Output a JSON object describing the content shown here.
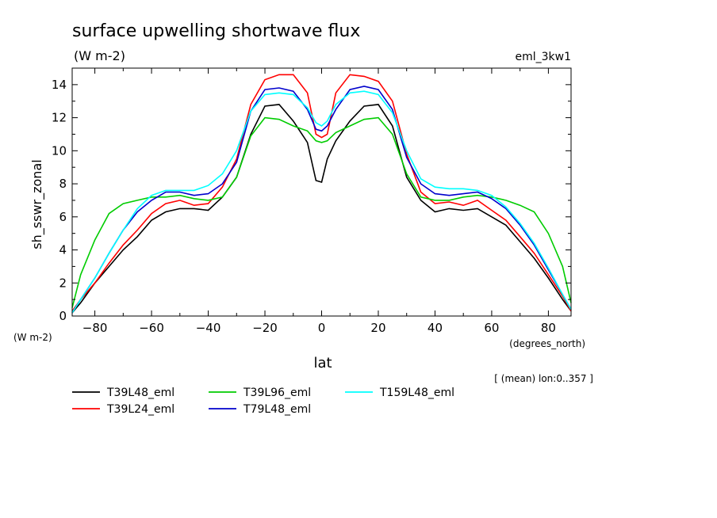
{
  "chart_data": {
    "type": "line",
    "title": "surface upwelling shortwave flux",
    "units_label": "(W m-2)",
    "dataset_label": "eml_3kw1",
    "xlabel": "lat",
    "xunits": "(degrees_north)",
    "ylabel": "sh_sswr_zonal",
    "yunits": "(W m-2)",
    "averaging_note": "[ (mean) lon:0..357 ]",
    "xlim": [
      -88,
      88
    ],
    "ylim": [
      0,
      15
    ],
    "xticks": [
      -80,
      -60,
      -40,
      -20,
      0,
      20,
      40,
      60,
      80
    ],
    "yticks": [
      0,
      2,
      4,
      6,
      8,
      10,
      12,
      14
    ],
    "legend_placement": "bottom",
    "series": [
      {
        "name": "T39L48_eml",
        "color": "#000000",
        "points": [
          [
            -88,
            0.2
          ],
          [
            -85,
            0.8
          ],
          [
            -80,
            2.0
          ],
          [
            -75,
            3.0
          ],
          [
            -70,
            4.0
          ],
          [
            -65,
            4.8
          ],
          [
            -60,
            5.8
          ],
          [
            -55,
            6.3
          ],
          [
            -50,
            6.5
          ],
          [
            -45,
            6.5
          ],
          [
            -40,
            6.4
          ],
          [
            -35,
            7.2
          ],
          [
            -30,
            8.4
          ],
          [
            -25,
            11.0
          ],
          [
            -20,
            12.7
          ],
          [
            -15,
            12.8
          ],
          [
            -10,
            11.8
          ],
          [
            -5,
            10.5
          ],
          [
            -2,
            8.2
          ],
          [
            0,
            8.1
          ],
          [
            2,
            9.5
          ],
          [
            5,
            10.6
          ],
          [
            10,
            11.8
          ],
          [
            15,
            12.7
          ],
          [
            20,
            12.8
          ],
          [
            25,
            11.5
          ],
          [
            30,
            8.4
          ],
          [
            35,
            7.0
          ],
          [
            40,
            6.3
          ],
          [
            45,
            6.5
          ],
          [
            50,
            6.4
          ],
          [
            55,
            6.5
          ],
          [
            60,
            6.0
          ],
          [
            65,
            5.5
          ],
          [
            70,
            4.5
          ],
          [
            75,
            3.5
          ],
          [
            80,
            2.3
          ],
          [
            85,
            1.0
          ],
          [
            88,
            0.3
          ]
        ]
      },
      {
        "name": "T39L24_eml",
        "color": "#ff0000",
        "points": [
          [
            -88,
            0.3
          ],
          [
            -85,
            1.0
          ],
          [
            -80,
            2.0
          ],
          [
            -75,
            3.2
          ],
          [
            -70,
            4.3
          ],
          [
            -65,
            5.2
          ],
          [
            -60,
            6.2
          ],
          [
            -55,
            6.8
          ],
          [
            -50,
            7.0
          ],
          [
            -45,
            6.7
          ],
          [
            -40,
            6.8
          ],
          [
            -35,
            7.8
          ],
          [
            -30,
            9.5
          ],
          [
            -25,
            12.8
          ],
          [
            -20,
            14.3
          ],
          [
            -15,
            14.6
          ],
          [
            -10,
            14.6
          ],
          [
            -5,
            13.5
          ],
          [
            -2,
            11.0
          ],
          [
            0,
            10.8
          ],
          [
            2,
            11.0
          ],
          [
            5,
            13.5
          ],
          [
            10,
            14.6
          ],
          [
            15,
            14.5
          ],
          [
            20,
            14.2
          ],
          [
            25,
            13.0
          ],
          [
            30,
            9.8
          ],
          [
            35,
            7.5
          ],
          [
            40,
            6.8
          ],
          [
            45,
            6.9
          ],
          [
            50,
            6.7
          ],
          [
            55,
            7.0
          ],
          [
            60,
            6.4
          ],
          [
            65,
            5.8
          ],
          [
            70,
            4.8
          ],
          [
            75,
            3.8
          ],
          [
            80,
            2.5
          ],
          [
            85,
            1.2
          ],
          [
            88,
            0.3
          ]
        ]
      },
      {
        "name": "T39L96_eml",
        "color": "#00cc00",
        "points": [
          [
            -88,
            0.5
          ],
          [
            -85,
            2.5
          ],
          [
            -80,
            4.6
          ],
          [
            -75,
            6.2
          ],
          [
            -70,
            6.8
          ],
          [
            -65,
            7.0
          ],
          [
            -60,
            7.2
          ],
          [
            -55,
            7.2
          ],
          [
            -50,
            7.3
          ],
          [
            -45,
            7.1
          ],
          [
            -40,
            7.0
          ],
          [
            -35,
            7.2
          ],
          [
            -30,
            8.4
          ],
          [
            -25,
            10.9
          ],
          [
            -20,
            12.0
          ],
          [
            -15,
            11.9
          ],
          [
            -10,
            11.5
          ],
          [
            -5,
            11.2
          ],
          [
            -2,
            10.6
          ],
          [
            0,
            10.5
          ],
          [
            2,
            10.6
          ],
          [
            5,
            11.1
          ],
          [
            10,
            11.5
          ],
          [
            15,
            11.9
          ],
          [
            20,
            12.0
          ],
          [
            25,
            11.0
          ],
          [
            30,
            8.6
          ],
          [
            35,
            7.2
          ],
          [
            40,
            7.0
          ],
          [
            45,
            7.0
          ],
          [
            50,
            7.2
          ],
          [
            55,
            7.3
          ],
          [
            60,
            7.2
          ],
          [
            65,
            7.0
          ],
          [
            70,
            6.7
          ],
          [
            75,
            6.3
          ],
          [
            80,
            5.0
          ],
          [
            85,
            3.0
          ],
          [
            88,
            0.8
          ]
        ]
      },
      {
        "name": "T79L48_eml",
        "color": "#0000cc",
        "points": [
          [
            -88,
            0.2
          ],
          [
            -85,
            1.0
          ],
          [
            -80,
            2.3
          ],
          [
            -75,
            3.8
          ],
          [
            -70,
            5.2
          ],
          [
            -65,
            6.3
          ],
          [
            -60,
            7.0
          ],
          [
            -55,
            7.5
          ],
          [
            -50,
            7.5
          ],
          [
            -45,
            7.3
          ],
          [
            -40,
            7.4
          ],
          [
            -35,
            8.0
          ],
          [
            -30,
            9.3
          ],
          [
            -25,
            12.4
          ],
          [
            -20,
            13.7
          ],
          [
            -15,
            13.8
          ],
          [
            -10,
            13.6
          ],
          [
            -5,
            12.5
          ],
          [
            -2,
            11.3
          ],
          [
            0,
            11.2
          ],
          [
            2,
            11.5
          ],
          [
            5,
            12.5
          ],
          [
            10,
            13.7
          ],
          [
            15,
            13.9
          ],
          [
            20,
            13.7
          ],
          [
            25,
            12.5
          ],
          [
            30,
            9.6
          ],
          [
            35,
            8.0
          ],
          [
            40,
            7.4
          ],
          [
            45,
            7.3
          ],
          [
            50,
            7.4
          ],
          [
            55,
            7.5
          ],
          [
            60,
            7.1
          ],
          [
            65,
            6.5
          ],
          [
            70,
            5.5
          ],
          [
            75,
            4.3
          ],
          [
            80,
            2.8
          ],
          [
            85,
            1.3
          ],
          [
            88,
            0.4
          ]
        ]
      },
      {
        "name": "T159L48_eml",
        "color": "#00ffff",
        "points": [
          [
            -88,
            0.2
          ],
          [
            -85,
            1.0
          ],
          [
            -80,
            2.3
          ],
          [
            -75,
            3.8
          ],
          [
            -70,
            5.2
          ],
          [
            -65,
            6.5
          ],
          [
            -60,
            7.3
          ],
          [
            -55,
            7.6
          ],
          [
            -50,
            7.6
          ],
          [
            -45,
            7.6
          ],
          [
            -40,
            7.9
          ],
          [
            -35,
            8.6
          ],
          [
            -30,
            10.0
          ],
          [
            -25,
            12.4
          ],
          [
            -20,
            13.4
          ],
          [
            -15,
            13.5
          ],
          [
            -10,
            13.4
          ],
          [
            -5,
            12.6
          ],
          [
            -2,
            11.7
          ],
          [
            0,
            11.5
          ],
          [
            2,
            11.8
          ],
          [
            5,
            12.8
          ],
          [
            10,
            13.5
          ],
          [
            15,
            13.6
          ],
          [
            20,
            13.4
          ],
          [
            25,
            12.3
          ],
          [
            30,
            10.0
          ],
          [
            35,
            8.3
          ],
          [
            40,
            7.8
          ],
          [
            45,
            7.7
          ],
          [
            50,
            7.7
          ],
          [
            55,
            7.6
          ],
          [
            60,
            7.3
          ],
          [
            65,
            6.6
          ],
          [
            70,
            5.6
          ],
          [
            75,
            4.4
          ],
          [
            80,
            2.9
          ],
          [
            85,
            1.3
          ],
          [
            88,
            0.4
          ]
        ]
      }
    ]
  }
}
